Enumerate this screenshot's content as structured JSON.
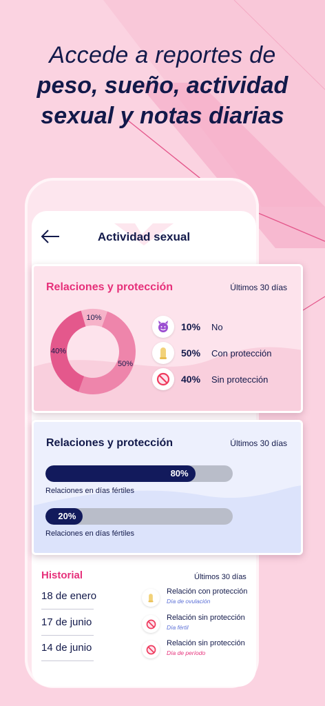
{
  "headline": {
    "line1": "Accede a reportes de",
    "line2": "peso, sueño, actividad",
    "line3": "sexual y notas diarias"
  },
  "screen": {
    "title": "Actividad sexual",
    "back_icon": "arrow-left-icon"
  },
  "relations_card": {
    "title": "Relaciones y protección",
    "period": "Últimos 30 días",
    "chart_data": {
      "type": "pie",
      "categories": [
        "No",
        "Con protección",
        "Sin protección"
      ],
      "values": [
        10,
        50,
        40
      ],
      "labels": [
        "10%",
        "50%",
        "40%"
      ],
      "colors": [
        "#f6b3c9",
        "#ee85ab",
        "#e4588c"
      ]
    },
    "legend": [
      {
        "pct": "10%",
        "label": "No",
        "icon": "devil-face-icon"
      },
      {
        "pct": "50%",
        "label": "Con protección",
        "icon": "condom-icon"
      },
      {
        "pct": "40%",
        "label": "Sin protección",
        "icon": "prohibited-icon"
      }
    ]
  },
  "fertile_card": {
    "title": "Relaciones y protección",
    "period": "Últimos 30 días",
    "bars": [
      {
        "value": 80,
        "label": "80%",
        "caption": "Relaciones en días fértiles"
      },
      {
        "value": 20,
        "label": "20%",
        "caption": "Relaciones en días fértiles"
      }
    ]
  },
  "history": {
    "title": "Historial",
    "period": "Últimos 30 días",
    "items": [
      {
        "date": "18 de enero",
        "text": "Relación con protección",
        "sub": "Día de ovulación",
        "sub_color": "#5b6fd6",
        "icon": "condom-icon"
      },
      {
        "date": "17 de junio",
        "text": "Relación sin protección",
        "sub": "Día fértil",
        "sub_color": "#5b6fd6",
        "icon": "prohibited-icon"
      },
      {
        "date": "14 de junio",
        "text": "Relación sin protección",
        "sub": "Día de período",
        "sub_color": "#e6307a",
        "icon": "prohibited-icon"
      }
    ]
  },
  "colors": {
    "background": "#fbd3e1",
    "accent_pink": "#e6307a",
    "navy": "#12194a",
    "bar_fill": "#121a5c",
    "bar_track": "#b9bdc9"
  }
}
